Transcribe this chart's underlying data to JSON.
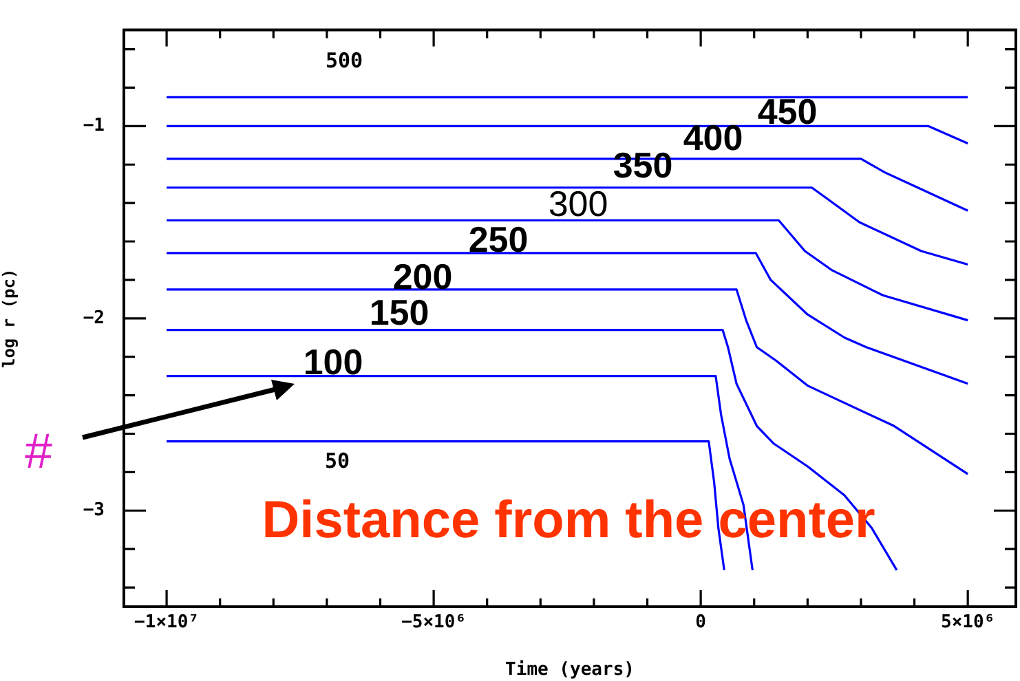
{
  "chart_data": {
    "type": "line",
    "xlabel": "Time (years)",
    "ylabel": "log r (pc)",
    "xlim": [
      -10800000,
      5900000
    ],
    "ylim": [
      -3.5,
      -0.5
    ],
    "xticks": [
      {
        "value": -10000000,
        "label": "−1×10⁷"
      },
      {
        "value": -9000000,
        "label": null
      },
      {
        "value": -8000000,
        "label": null
      },
      {
        "value": -7000000,
        "label": null
      },
      {
        "value": -6000000,
        "label": null
      },
      {
        "value": -5000000,
        "label": "−5×10⁶"
      },
      {
        "value": -4000000,
        "label": null
      },
      {
        "value": -3000000,
        "label": null
      },
      {
        "value": -2000000,
        "label": null
      },
      {
        "value": -1000000,
        "label": null
      },
      {
        "value": 0,
        "label": "0"
      },
      {
        "value": 1000000,
        "label": null
      },
      {
        "value": 2000000,
        "label": null
      },
      {
        "value": 3000000,
        "label": null
      },
      {
        "value": 4000000,
        "label": null
      },
      {
        "value": 5000000,
        "label": "5×10⁶"
      }
    ],
    "yticks": [
      {
        "value": -3.4,
        "label": null
      },
      {
        "value": -3.2,
        "label": null
      },
      {
        "value": -3,
        "label": "−3"
      },
      {
        "value": -2.8,
        "label": null
      },
      {
        "value": -2.6,
        "label": null
      },
      {
        "value": -2.4,
        "label": null
      },
      {
        "value": -2.2,
        "label": null
      },
      {
        "value": -2,
        "label": "−2"
      },
      {
        "value": -1.8,
        "label": null
      },
      {
        "value": -1.6,
        "label": null
      },
      {
        "value": -1.4,
        "label": null
      },
      {
        "value": -1.2,
        "label": null
      },
      {
        "value": -1,
        "label": "−1"
      },
      {
        "value": -0.8,
        "label": null
      },
      {
        "value": -0.6,
        "label": null
      }
    ],
    "grid": false,
    "legend": false,
    "marker": "none",
    "line_style": "solid",
    "series": [
      {
        "name": "500",
        "color": "#0000ff",
        "x": [
          -10000000,
          5000000
        ],
        "values": [
          -0.85,
          -0.85
        ]
      },
      {
        "name": "450",
        "color": "#0000ff",
        "x": [
          -10000000,
          4260000,
          5000000
        ],
        "values": [
          -1.0,
          -1.0,
          -1.09
        ]
      },
      {
        "name": "400",
        "color": "#0000ff",
        "x": [
          -10000000,
          3000000,
          3440000,
          5000000
        ],
        "values": [
          -1.17,
          -1.17,
          -1.24,
          -1.44
        ]
      },
      {
        "name": "350",
        "color": "#0000ff",
        "x": [
          -10000000,
          2080000,
          2330000,
          2970000,
          4130000,
          5000000
        ],
        "values": [
          -1.32,
          -1.32,
          -1.37,
          -1.5,
          -1.65,
          -1.72
        ]
      },
      {
        "name": "300",
        "color": "#0000ff",
        "x": [
          -10000000,
          1460000,
          1950000,
          2460000,
          3410000,
          5000000
        ],
        "values": [
          -1.49,
          -1.49,
          -1.65,
          -1.75,
          -1.88,
          -2.01
        ]
      },
      {
        "name": "250",
        "color": "#0000ff",
        "x": [
          -10000000,
          1030000,
          1310000,
          2000000,
          2690000,
          3100000,
          5000000
        ],
        "values": [
          -1.66,
          -1.66,
          -1.8,
          -1.98,
          -2.1,
          -2.15,
          -2.34
        ]
      },
      {
        "name": "200",
        "color": "#0000ff",
        "x": [
          -10000000,
          670000,
          850000,
          1050000,
          1410000,
          2000000,
          3620000,
          5000000
        ],
        "values": [
          -1.85,
          -1.85,
          -2.01,
          -2.15,
          -2.22,
          -2.35,
          -2.56,
          -2.81
        ]
      },
      {
        "name": "150",
        "color": "#0000ff",
        "x": [
          -10000000,
          410000,
          510000,
          670000,
          1050000,
          1360000,
          2000000,
          2690000,
          3200000,
          3670000
        ],
        "values": [
          -2.06,
          -2.06,
          -2.15,
          -2.34,
          -2.56,
          -2.65,
          -2.77,
          -2.92,
          -3.09,
          -3.31
        ]
      },
      {
        "name": "100",
        "color": "#0000ff",
        "x": [
          -10000000,
          280000,
          380000,
          540000,
          800000,
          970000
        ],
        "values": [
          -2.3,
          -2.3,
          -2.5,
          -2.73,
          -2.97,
          -3.31
        ]
      },
      {
        "name": "50",
        "color": "#0000ff",
        "x": [
          -10000000,
          150000,
          250000,
          330000,
          440000
        ],
        "values": [
          -2.64,
          -2.64,
          -2.85,
          -3.09,
          -3.31
        ]
      }
    ],
    "annotations": [
      "#",
      "Distance from the center"
    ]
  }
}
